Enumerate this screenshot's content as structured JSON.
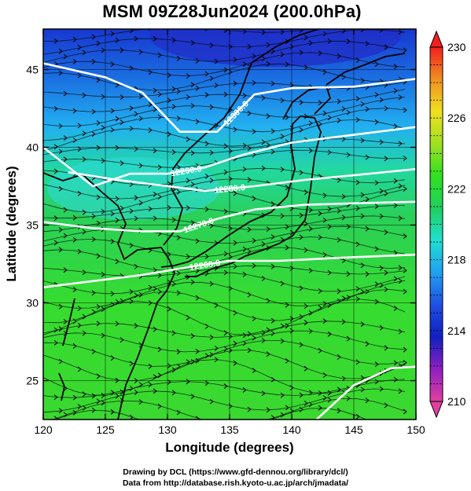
{
  "title": "MSM 09Z28Jun2024 (200.0hPa)",
  "x_axis": {
    "label": "Longitude (degrees)",
    "ticks": [
      "120",
      "125",
      "130",
      "135",
      "140",
      "145",
      "150"
    ],
    "range": [
      120,
      150
    ]
  },
  "y_axis": {
    "label": "Latitude  (degrees)",
    "ticks": [
      "25",
      "30",
      "35",
      "40",
      "45"
    ],
    "range": [
      22.5,
      47.6
    ]
  },
  "colorbar": {
    "ticks": [
      "210",
      "214",
      "218",
      "222",
      "226",
      "230"
    ],
    "range": [
      210,
      230
    ],
    "colors": [
      "#e040a0",
      "#9020c0",
      "#1020c0",
      "#2050e0",
      "#20a0f0",
      "#20e0d0",
      "#20d060",
      "#30e020",
      "#a0e020",
      "#f0e020",
      "#f09020",
      "#f02020"
    ]
  },
  "contours": [
    {
      "label": "12300.0",
      "lat_at_lon": [
        [
          120,
          45.4
        ],
        [
          125,
          44.5
        ],
        [
          128,
          43.5
        ],
        [
          131,
          41
        ],
        [
          134,
          41
        ],
        [
          137,
          43.4
        ],
        [
          140,
          43.8
        ],
        [
          145,
          43.9
        ],
        [
          150,
          44.4
        ]
      ]
    },
    {
      "label": "12290.0",
      "lat_at_lon": [
        [
          120,
          40.0
        ],
        [
          124,
          37.5
        ],
        [
          127,
          38.3
        ],
        [
          130,
          38.3
        ],
        [
          133,
          38.7
        ],
        [
          136,
          39.5
        ],
        [
          140,
          40.3
        ],
        [
          145,
          40.8
        ],
        [
          150,
          41.3
        ]
      ]
    },
    {
      "label": "12280.0",
      "lat_at_lon": [
        [
          122,
          38.4
        ],
        [
          126,
          37.9
        ],
        [
          129,
          37.6
        ],
        [
          133,
          37.2
        ],
        [
          137,
          37.5
        ],
        [
          141,
          37.9
        ],
        [
          145,
          38.2
        ],
        [
          150,
          38.6
        ]
      ]
    },
    {
      "label": "12270.0",
      "lat_at_lon": [
        [
          120,
          35.2
        ],
        [
          124,
          34.8
        ],
        [
          128,
          34.6
        ],
        [
          131,
          34.6
        ],
        [
          134,
          35.4
        ],
        [
          137,
          36
        ],
        [
          141,
          36.3
        ],
        [
          145,
          36.4
        ],
        [
          150,
          36.5
        ]
      ]
    },
    {
      "label": "12260.0",
      "lat_at_lon": [
        [
          120,
          31.0
        ],
        [
          124,
          31.4
        ],
        [
          128,
          31.8
        ],
        [
          131,
          32.2
        ],
        [
          135,
          32.7
        ],
        [
          139,
          32.7
        ],
        [
          144,
          32.9
        ],
        [
          150,
          33.1
        ]
      ]
    },
    {
      "label": "",
      "lat_at_lon": [
        [
          142,
          22.5
        ],
        [
          145,
          24.7
        ],
        [
          148,
          25.8
        ],
        [
          150,
          25.9
        ]
      ]
    }
  ],
  "attribution": {
    "line1": "Drawing by DCL (https://www.gfd-dennou.org/library/dcl/)",
    "line2": "Data from http://database.rish.kyoto-u.ac.jp/arch/jmadata/"
  }
}
